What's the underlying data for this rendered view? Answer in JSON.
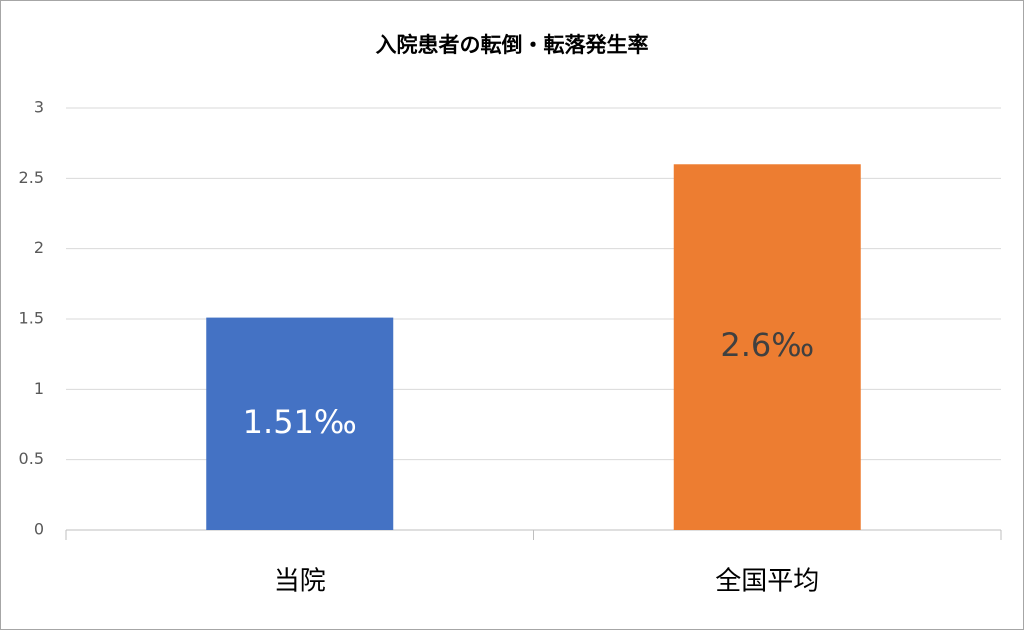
{
  "chart_data": {
    "type": "bar",
    "title": "入院患者の転倒・転落発生率",
    "categories": [
      "当院",
      "全国平均"
    ],
    "values": [
      1.51,
      2.6
    ],
    "value_labels": [
      "1.51‰",
      "2.6‰"
    ],
    "colors": [
      "#4472c4",
      "#ed7d31"
    ],
    "ylim": [
      0,
      3
    ],
    "yticks": [
      0,
      0.5,
      1,
      1.5,
      2,
      2.5,
      3
    ],
    "grid": true
  }
}
